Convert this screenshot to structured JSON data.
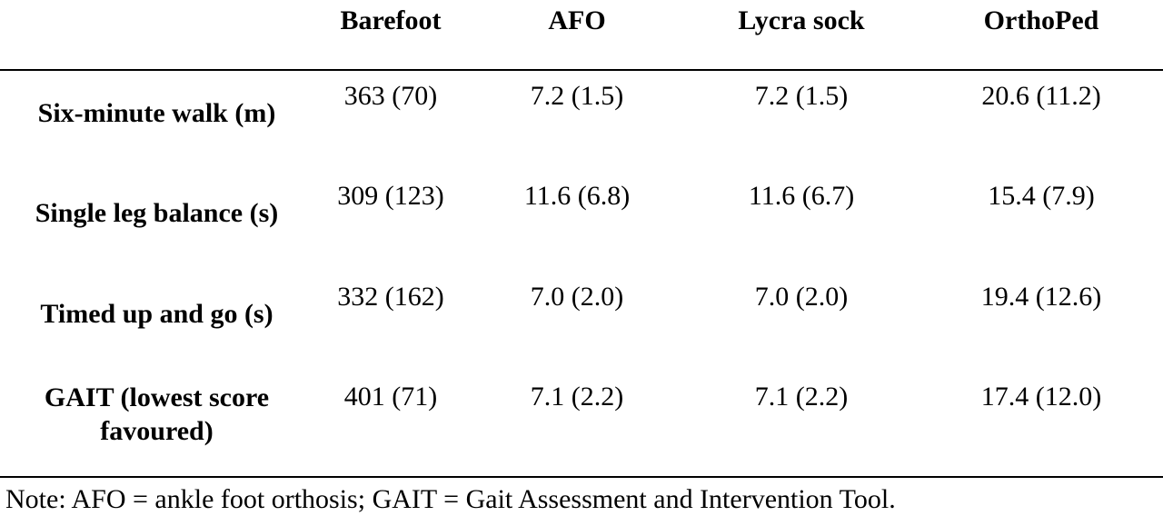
{
  "table": {
    "columns": [
      "Barefoot",
      "AFO",
      "Lycra sock",
      "OrthoPed"
    ],
    "rows": [
      {
        "label_lines": [
          "Six-minute walk (m)"
        ],
        "values": [
          "363 (70)",
          "7.2 (1.5)",
          "7.2 (1.5)",
          "20.6 (11.2)"
        ]
      },
      {
        "label_lines": [
          "Single leg balance (s)"
        ],
        "values": [
          "309 (123)",
          "11.6 (6.8)",
          "11.6 (6.7)",
          "15.4 (7.9)"
        ]
      },
      {
        "label_lines": [
          "Timed up and go (s)"
        ],
        "values": [
          "332 (162)",
          "7.0 (2.0)",
          "7.0 (2.0)",
          "19.4 (12.6)"
        ]
      },
      {
        "label_lines": [
          "GAIT (lowest score",
          "favoured)"
        ],
        "values": [
          "401 (71)",
          "7.1 (2.2)",
          "7.1 (2.2)",
          "17.4 (12.0)"
        ]
      }
    ]
  },
  "note": "Note: AFO = ankle foot orthosis; GAIT = Gait Assessment and Intervention Tool."
}
